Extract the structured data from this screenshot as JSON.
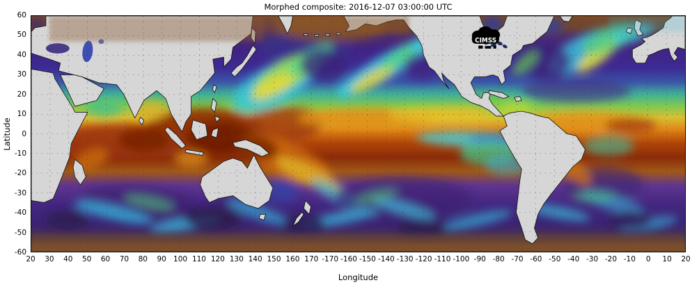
{
  "figure": {
    "title": "Morphed composite: 2016-12-07 03:00:00 UTC",
    "x_axis": {
      "label": "Longitude",
      "ticks": [
        "20",
        "30",
        "40",
        "50",
        "60",
        "70",
        "80",
        "90",
        "100",
        "110",
        "120",
        "130",
        "140",
        "150",
        "160",
        "170",
        "-170",
        "-160",
        "-150",
        "-140",
        "-130",
        "-120",
        "-110",
        "-100",
        "-90",
        "-80",
        "-70",
        "-60",
        "-50",
        "-40",
        "-30",
        "-20",
        "-10",
        "0",
        "10",
        "20"
      ]
    },
    "y_axis": {
      "label": "Latitude",
      "ticks": [
        "60",
        "50",
        "40",
        "30",
        "20",
        "10",
        "0",
        "-10",
        "-20",
        "-30",
        "-40",
        "-50",
        "-60"
      ]
    },
    "logo": {
      "text": "CIMSS"
    },
    "colormap": {
      "order": "low to high precipitable water",
      "colors": [
        "#42217a",
        "#2c3fa8",
        "#38c8e0",
        "#50d080",
        "#e6d83a",
        "#e8981c",
        "#b04c0c",
        "#7a2404"
      ]
    }
  },
  "chart_data": {
    "type": "heatmap",
    "title": "Morphed composite: 2016-12-07 03:00:00 UTC",
    "xlabel": "Longitude",
    "ylabel": "Latitude",
    "x_start_deg_east": 20,
    "x_end_deg_east": 20,
    "ylim": [
      -60,
      60
    ],
    "grid": "dotted every 10 degrees",
    "land_color": "#d6d6d6"
  }
}
